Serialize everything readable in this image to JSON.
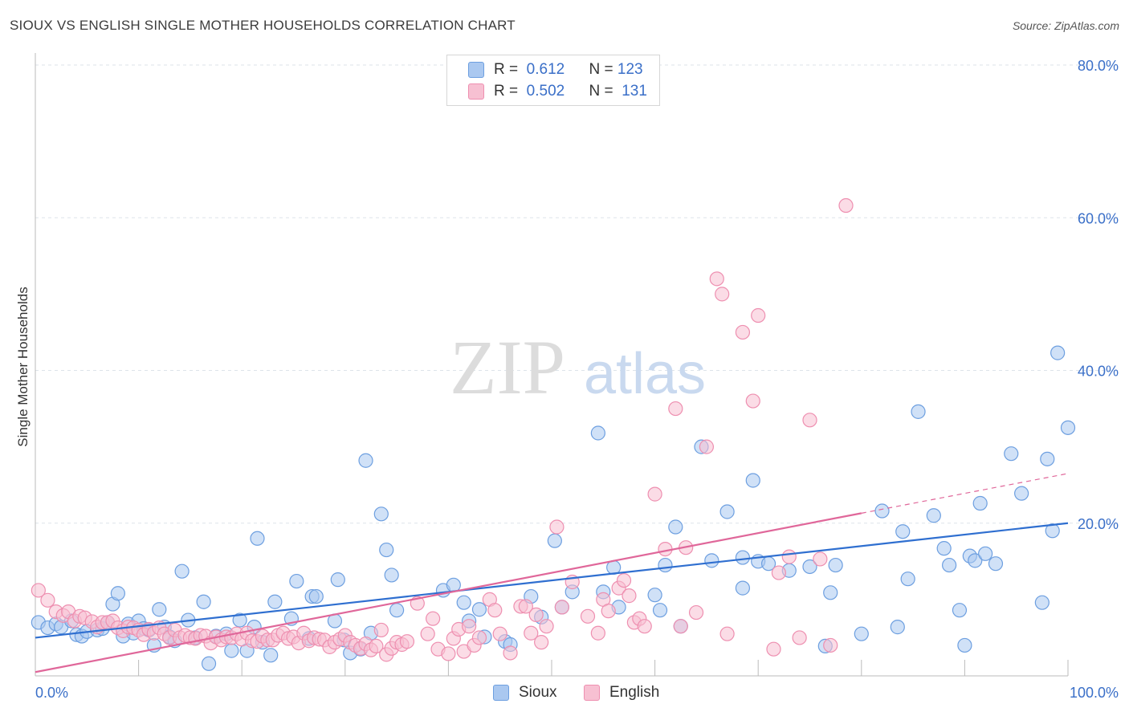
{
  "title": "SIOUX VS ENGLISH SINGLE MOTHER HOUSEHOLDS CORRELATION CHART",
  "source": "Source: ZipAtlas.com",
  "watermark": {
    "zip": "ZIP",
    "atlas": "atlas"
  },
  "legend": {
    "r_label": "R =",
    "n_label": "N =",
    "sioux": {
      "r": "0.612",
      "n": "123"
    },
    "english": {
      "r": "0.502",
      "n": "131"
    }
  },
  "colors": {
    "sioux_fill": "#aac8f0",
    "sioux_stroke": "#6d9fe0",
    "sioux_line": "#2f6fd0",
    "english_fill": "#f7c0d2",
    "english_stroke": "#ee8fb0",
    "english_line": "#e0679a",
    "axis_label": "#3a6fc8",
    "grid": "#dde3ea"
  },
  "chart_data": {
    "type": "scatter",
    "title": "SIOUX VS ENGLISH SINGLE MOTHER HOUSEHOLDS CORRELATION CHART",
    "xlabel": "",
    "ylabel": "Single Mother Households",
    "xlim": [
      0,
      100
    ],
    "ylim": [
      0,
      80
    ],
    "x_tick_labels": [
      "0.0%",
      "100.0%"
    ],
    "y_ticks": [
      20,
      40,
      60,
      80
    ],
    "y_tick_labels": [
      "20.0%",
      "40.0%",
      "60.0%",
      "80.0%"
    ],
    "grid": true,
    "legend_position": "bottom-center",
    "series": [
      {
        "name": "Sioux",
        "trendline": {
          "x0": 0,
          "y0": 5.0,
          "x1": 100,
          "y1": 20.0,
          "dashed_from": null
        },
        "points": [
          [
            0.3,
            7.0
          ],
          [
            1.2,
            6.3
          ],
          [
            2.0,
            6.8
          ],
          [
            2.5,
            6.4
          ],
          [
            3.5,
            7.2
          ],
          [
            4.0,
            5.4
          ],
          [
            4.5,
            5.2
          ],
          [
            5.0,
            5.8
          ],
          [
            6.0,
            6.0
          ],
          [
            6.5,
            6.2
          ],
          [
            7.0,
            7.0
          ],
          [
            7.5,
            9.4
          ],
          [
            8.0,
            10.8
          ],
          [
            8.5,
            5.2
          ],
          [
            9.0,
            6.8
          ],
          [
            9.5,
            5.6
          ],
          [
            10.0,
            7.2
          ],
          [
            10.5,
            6.2
          ],
          [
            11.0,
            6.0
          ],
          [
            11.5,
            4.0
          ],
          [
            12.0,
            8.7
          ],
          [
            12.5,
            6.4
          ],
          [
            13.0,
            5.1
          ],
          [
            13.5,
            4.6
          ],
          [
            14.2,
            13.7
          ],
          [
            14.8,
            7.3
          ],
          [
            15.5,
            5.0
          ],
          [
            16.3,
            9.7
          ],
          [
            16.8,
            1.6
          ],
          [
            17.5,
            5.2
          ],
          [
            18.5,
            5.5
          ],
          [
            19.0,
            3.3
          ],
          [
            19.8,
            7.3
          ],
          [
            20.5,
            3.3
          ],
          [
            21.2,
            6.4
          ],
          [
            21.5,
            18.0
          ],
          [
            22.0,
            4.4
          ],
          [
            22.8,
            2.7
          ],
          [
            23.2,
            9.7
          ],
          [
            24.8,
            7.5
          ],
          [
            25.3,
            12.4
          ],
          [
            26.5,
            4.9
          ],
          [
            26.8,
            10.4
          ],
          [
            27.2,
            10.4
          ],
          [
            29.0,
            7.2
          ],
          [
            29.3,
            12.6
          ],
          [
            29.9,
            4.7
          ],
          [
            30.5,
            3.0
          ],
          [
            31.5,
            3.5
          ],
          [
            32.0,
            28.2
          ],
          [
            32.5,
            5.6
          ],
          [
            33.5,
            21.2
          ],
          [
            34.0,
            16.5
          ],
          [
            34.5,
            13.2
          ],
          [
            35.0,
            8.6
          ],
          [
            39.5,
            11.2
          ],
          [
            40.5,
            11.9
          ],
          [
            41.5,
            9.6
          ],
          [
            42.0,
            7.2
          ],
          [
            43.0,
            8.7
          ],
          [
            43.5,
            5.1
          ],
          [
            45.5,
            4.5
          ],
          [
            46.0,
            4.1
          ],
          [
            48.0,
            10.4
          ],
          [
            49.0,
            7.7
          ],
          [
            50.3,
            17.7
          ],
          [
            51.0,
            9.0
          ],
          [
            52.0,
            11.0
          ],
          [
            54.5,
            31.8
          ],
          [
            55.0,
            11.0
          ],
          [
            56.0,
            14.2
          ],
          [
            56.5,
            9.0
          ],
          [
            60.0,
            10.6
          ],
          [
            60.5,
            8.6
          ],
          [
            61.0,
            14.5
          ],
          [
            62.0,
            19.5
          ],
          [
            62.5,
            6.5
          ],
          [
            64.5,
            30.0
          ],
          [
            65.5,
            15.1
          ],
          [
            67.0,
            21.5
          ],
          [
            68.5,
            15.5
          ],
          [
            68.5,
            11.5
          ],
          [
            69.5,
            25.6
          ],
          [
            70.0,
            15.0
          ],
          [
            71.0,
            14.7
          ],
          [
            73.0,
            13.8
          ],
          [
            75.0,
            14.3
          ],
          [
            76.5,
            3.9
          ],
          [
            77.0,
            10.9
          ],
          [
            77.5,
            14.5
          ],
          [
            80.0,
            5.5
          ],
          [
            82.0,
            21.6
          ],
          [
            83.5,
            6.4
          ],
          [
            84.0,
            18.9
          ],
          [
            84.5,
            12.7
          ],
          [
            85.5,
            34.6
          ],
          [
            87.0,
            21.0
          ],
          [
            88.0,
            16.7
          ],
          [
            88.5,
            14.5
          ],
          [
            89.5,
            8.6
          ],
          [
            90.0,
            4.0
          ],
          [
            90.5,
            15.7
          ],
          [
            91.0,
            15.1
          ],
          [
            91.5,
            22.6
          ],
          [
            92.0,
            16.0
          ],
          [
            93.0,
            14.7
          ],
          [
            94.5,
            29.1
          ],
          [
            95.5,
            23.9
          ],
          [
            97.5,
            9.6
          ],
          [
            98.0,
            28.4
          ],
          [
            98.5,
            19.0
          ],
          [
            99.0,
            42.3
          ],
          [
            100.0,
            32.5
          ]
        ]
      },
      {
        "name": "English",
        "trendline": {
          "x0": 0,
          "y0": 0.5,
          "x1": 100,
          "y1": 26.5,
          "dashed_from": 80
        },
        "points": [
          [
            0.3,
            11.2
          ],
          [
            1.2,
            9.9
          ],
          [
            2.0,
            8.4
          ],
          [
            2.7,
            7.9
          ],
          [
            3.2,
            8.4
          ],
          [
            3.8,
            7.2
          ],
          [
            4.3,
            7.8
          ],
          [
            4.8,
            7.6
          ],
          [
            5.5,
            7.1
          ],
          [
            6.0,
            6.4
          ],
          [
            6.5,
            7.0
          ],
          [
            7.0,
            7.0
          ],
          [
            7.5,
            7.2
          ],
          [
            8.0,
            6.3
          ],
          [
            8.5,
            5.9
          ],
          [
            9.0,
            6.4
          ],
          [
            9.5,
            6.3
          ],
          [
            10.0,
            6.0
          ],
          [
            10.5,
            5.4
          ],
          [
            11.0,
            6.1
          ],
          [
            11.5,
            5.6
          ],
          [
            12.0,
            6.3
          ],
          [
            12.5,
            5.5
          ],
          [
            13.0,
            5.0
          ],
          [
            13.5,
            6.0
          ],
          [
            14.0,
            5.0
          ],
          [
            14.5,
            5.3
          ],
          [
            15.0,
            5.0
          ],
          [
            15.5,
            4.9
          ],
          [
            16.0,
            5.3
          ],
          [
            16.5,
            5.2
          ],
          [
            17.0,
            4.3
          ],
          [
            17.5,
            5.1
          ],
          [
            18.0,
            4.7
          ],
          [
            18.5,
            5.1
          ],
          [
            19.0,
            5.0
          ],
          [
            19.5,
            5.5
          ],
          [
            20.0,
            4.8
          ],
          [
            20.5,
            5.6
          ],
          [
            21.0,
            4.6
          ],
          [
            21.5,
            4.5
          ],
          [
            22.0,
            5.2
          ],
          [
            22.5,
            4.7
          ],
          [
            23.0,
            4.7
          ],
          [
            23.5,
            5.3
          ],
          [
            24.0,
            5.6
          ],
          [
            24.5,
            4.9
          ],
          [
            25.0,
            5.1
          ],
          [
            25.5,
            4.3
          ],
          [
            26.0,
            5.6
          ],
          [
            26.5,
            4.6
          ],
          [
            27.0,
            5.0
          ],
          [
            27.5,
            4.8
          ],
          [
            28.0,
            4.7
          ],
          [
            28.5,
            3.8
          ],
          [
            29.0,
            4.4
          ],
          [
            29.5,
            4.8
          ],
          [
            30.0,
            5.3
          ],
          [
            30.5,
            4.4
          ],
          [
            31.0,
            4.0
          ],
          [
            31.5,
            3.6
          ],
          [
            32.0,
            4.2
          ],
          [
            32.5,
            3.4
          ],
          [
            33.0,
            3.9
          ],
          [
            33.5,
            6.0
          ],
          [
            34.0,
            2.8
          ],
          [
            34.5,
            3.6
          ],
          [
            35.0,
            4.4
          ],
          [
            35.5,
            4.1
          ],
          [
            36.0,
            4.5
          ],
          [
            37.0,
            9.5
          ],
          [
            38.0,
            5.5
          ],
          [
            38.5,
            7.5
          ],
          [
            39.0,
            3.5
          ],
          [
            40.0,
            2.9
          ],
          [
            40.5,
            4.9
          ],
          [
            41.0,
            6.1
          ],
          [
            41.5,
            3.2
          ],
          [
            42.0,
            6.5
          ],
          [
            42.5,
            4.0
          ],
          [
            43.0,
            5.0
          ],
          [
            44.0,
            10.0
          ],
          [
            44.5,
            8.6
          ],
          [
            45.0,
            5.5
          ],
          [
            46.0,
            3.0
          ],
          [
            47.0,
            9.1
          ],
          [
            47.5,
            9.1
          ],
          [
            48.0,
            5.6
          ],
          [
            48.5,
            8.0
          ],
          [
            49.0,
            4.4
          ],
          [
            49.5,
            6.5
          ],
          [
            50.5,
            19.5
          ],
          [
            51.0,
            9.0
          ],
          [
            52.0,
            12.3
          ],
          [
            53.5,
            7.8
          ],
          [
            54.5,
            5.6
          ],
          [
            55.0,
            10.0
          ],
          [
            55.5,
            8.5
          ],
          [
            56.5,
            11.5
          ],
          [
            57.0,
            12.5
          ],
          [
            57.5,
            10.5
          ],
          [
            58.0,
            7.0
          ],
          [
            58.5,
            7.5
          ],
          [
            59.0,
            6.5
          ],
          [
            60.0,
            23.8
          ],
          [
            61.0,
            16.6
          ],
          [
            62.0,
            35.0
          ],
          [
            62.5,
            6.5
          ],
          [
            63.0,
            16.8
          ],
          [
            64.0,
            8.3
          ],
          [
            65.0,
            30.0
          ],
          [
            66.0,
            52.0
          ],
          [
            66.5,
            50.0
          ],
          [
            67.0,
            5.5
          ],
          [
            68.5,
            45.0
          ],
          [
            69.5,
            36.0
          ],
          [
            70.0,
            47.2
          ],
          [
            71.5,
            3.5
          ],
          [
            72.0,
            13.5
          ],
          [
            73.0,
            15.6
          ],
          [
            74.0,
            5.0
          ],
          [
            75.0,
            33.5
          ],
          [
            76.0,
            15.3
          ],
          [
            77.0,
            4.0
          ],
          [
            78.5,
            61.6
          ]
        ]
      }
    ]
  }
}
